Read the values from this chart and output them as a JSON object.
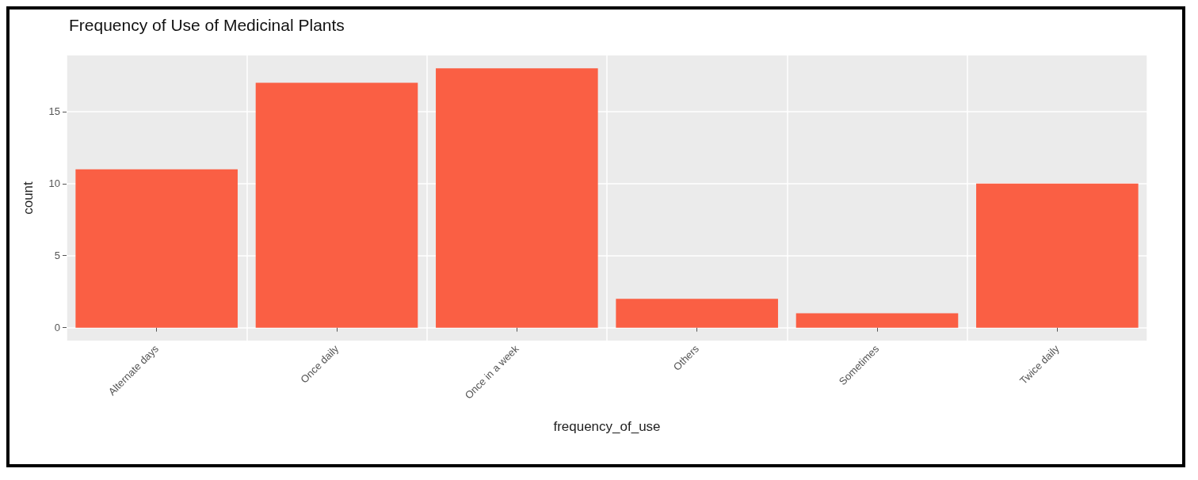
{
  "chart_data": {
    "type": "bar",
    "title": "Frequency of Use of Medicinal Plants",
    "xlabel": "frequency_of_use",
    "ylabel": "count",
    "categories": [
      "Alternate days",
      "Once daily",
      "Once in a week",
      "Others",
      "Sometimes",
      "Twice daily"
    ],
    "values": [
      11,
      17,
      18,
      2,
      1,
      10
    ],
    "color": "#fa5f44",
    "ylim": [
      -0.9,
      18.9
    ],
    "yticks": [
      0,
      5,
      10,
      15
    ],
    "grid": true
  }
}
